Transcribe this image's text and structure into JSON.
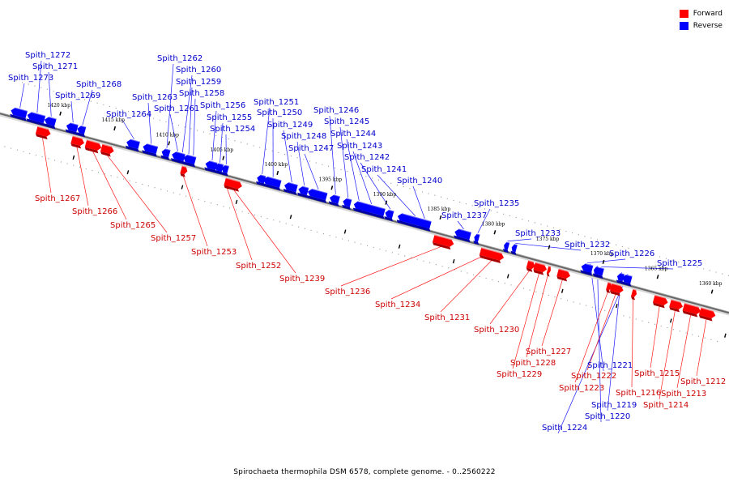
{
  "caption": "Spirochaeta thermophila DSM 6578, complete genome. - 0..2560222",
  "legend": [
    {
      "label": "Forward",
      "color": "#ff0000"
    },
    {
      "label": "Reverse",
      "color": "#0000ff"
    }
  ],
  "colors": {
    "forward": "#ff0000",
    "reverse": "#0000ff",
    "forward_label": "#cc0000",
    "reverse_label": "#0000cc"
  },
  "scale_ticks": [
    "1420 kbp",
    "1415 kbp",
    "1410 kbp",
    "1405 kbp",
    "1400 kbp",
    "1395 kbp",
    "1390 kbp",
    "1385 kbp",
    "1380 kbp",
    "1375 kbp",
    "1370 kbp",
    "1365 kbp",
    "1360 kbp"
  ],
  "genes": {
    "reverse": [
      "Spith_1273",
      "Spith_1272",
      "Spith_1271",
      "Spith_1269",
      "Spith_1268",
      "Spith_1264",
      "Spith_1263",
      "Spith_1262",
      "Spith_1261",
      "Spith_1260",
      "Spith_1259",
      "Spith_1258",
      "Spith_1256",
      "Spith_1255",
      "Spith_1254",
      "Spith_1251",
      "Spith_1250",
      "Spith_1249",
      "Spith_1248",
      "Spith_1247",
      "Spith_1246",
      "Spith_1245",
      "Spith_1244",
      "Spith_1243",
      "Spith_1242",
      "Spith_1241",
      "Spith_1240",
      "Spith_1237",
      "Spith_1235",
      "Spith_1233",
      "Spith_1232",
      "Spith_1226",
      "Spith_1225",
      "Spith_1224",
      "Spith_1221",
      "Spith_1220",
      "Spith_1219"
    ],
    "forward": [
      "Spith_1267",
      "Spith_1266",
      "Spith_1265",
      "Spith_1257",
      "Spith_1253",
      "Spith_1252",
      "Spith_1239",
      "Spith_1236",
      "Spith_1234",
      "Spith_1231",
      "Spith_1230",
      "Spith_1229",
      "Spith_1228",
      "Spith_1227",
      "Spith_1223",
      "Spith_1222",
      "Spith_1216",
      "Spith_1215",
      "Spith_1214",
      "Spith_1213",
      "Spith_1212"
    ]
  }
}
